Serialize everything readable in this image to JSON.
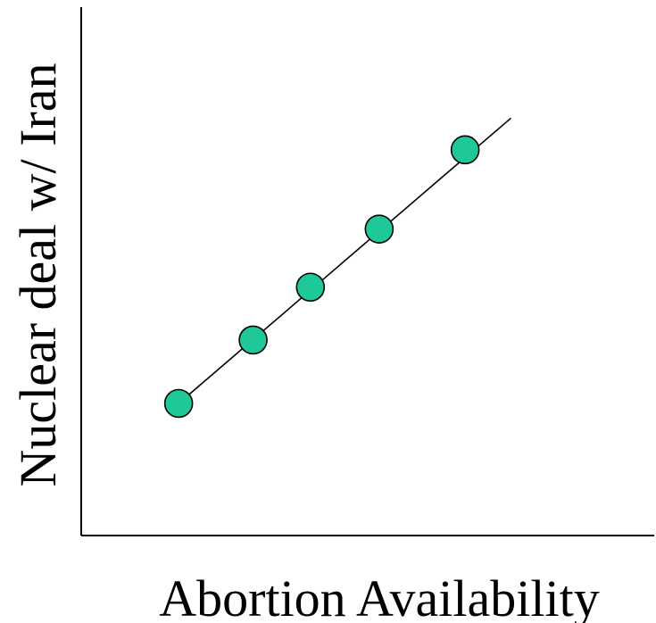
{
  "chart_data": {
    "type": "scatter",
    "title": "",
    "xlabel": "Abortion Availability",
    "ylabel": "Nuclear deal w/ Iran",
    "grid": false,
    "legend": "none",
    "xlim": [
      0,
      100
    ],
    "ylim": [
      0,
      100
    ],
    "points": [
      {
        "x": 17,
        "y": 25
      },
      {
        "x": 30,
        "y": 37
      },
      {
        "x": 40,
        "y": 47
      },
      {
        "x": 52,
        "y": 58
      },
      {
        "x": 67,
        "y": 73
      }
    ],
    "trendline": {
      "x": [
        17,
        75
      ],
      "y": [
        25,
        79
      ]
    },
    "colors": {
      "point_fill": "#1ec898",
      "point_stroke": "#000000",
      "axis": "#000000",
      "line": "#000000"
    }
  }
}
